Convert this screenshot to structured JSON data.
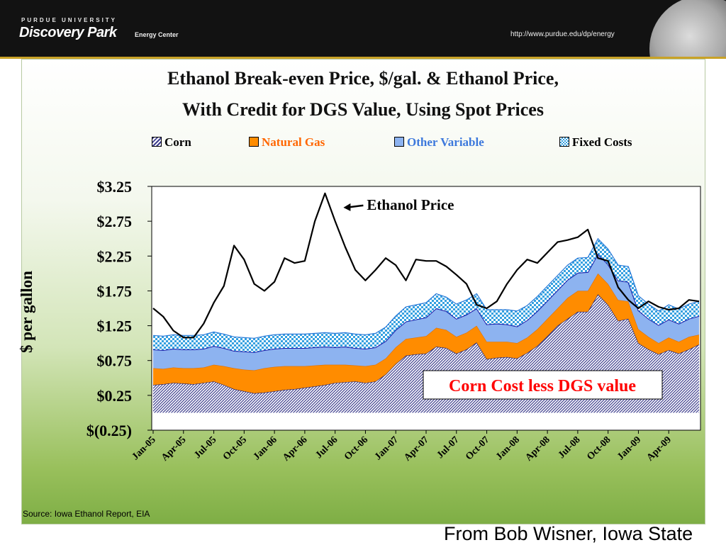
{
  "header": {
    "university": "PURDUE UNIVERSITY",
    "brand": "Discovery Park",
    "sub": "Energy Center",
    "url": "http://www.purdue.edu/dp/energy"
  },
  "chart_data": {
    "type": "area",
    "title": "Ethanol Break-even Price, $/gal. & Ethanol Price,",
    "subtitle": "With Credit for DGS Value, Using Spot Prices",
    "ylabel": "$ per gallon",
    "ylim": [
      -0.25,
      3.25
    ],
    "yticks": [
      "$3.25",
      "$2.75",
      "$2.25",
      "$1.75",
      "$1.25",
      "$0.75",
      "$0.25",
      "$(0.25)"
    ],
    "ytick_values": [
      3.25,
      2.75,
      2.25,
      1.75,
      1.25,
      0.75,
      0.25,
      -0.25
    ],
    "xtick_labels": [
      "Jan-05",
      "Apr-05",
      "Jul-05",
      "Oct-05",
      "Jan-06",
      "Apr-06",
      "Jul-06",
      "Oct-06",
      "Jan-07",
      "Apr-07",
      "Jul-07",
      "Oct-07",
      "Jan-08",
      "Apr-08",
      "Jul-08",
      "Oct-08",
      "Jan-09",
      "Apr-09"
    ],
    "legend_placement": "top",
    "grid": false,
    "stacked": true,
    "x": [
      "Jan-05",
      "Feb-05",
      "Mar-05",
      "Apr-05",
      "May-05",
      "Jun-05",
      "Jul-05",
      "Aug-05",
      "Sep-05",
      "Oct-05",
      "Nov-05",
      "Dec-05",
      "Jan-06",
      "Feb-06",
      "Mar-06",
      "Apr-06",
      "May-06",
      "Jun-06",
      "Jul-06",
      "Aug-06",
      "Sep-06",
      "Oct-06",
      "Nov-06",
      "Dec-06",
      "Jan-07",
      "Feb-07",
      "Mar-07",
      "Apr-07",
      "May-07",
      "Jun-07",
      "Jul-07",
      "Aug-07",
      "Sep-07",
      "Oct-07",
      "Nov-07",
      "Dec-07",
      "Jan-08",
      "Feb-08",
      "Mar-08",
      "Apr-08",
      "May-08",
      "Jun-08",
      "Jul-08",
      "Aug-08",
      "Sep-08",
      "Oct-08",
      "Nov-08",
      "Dec-08",
      "Jan-09",
      "Feb-09",
      "Mar-09",
      "Apr-09",
      "May-09",
      "Jun-09",
      "Jul-09"
    ],
    "series": [
      {
        "name": "Corn",
        "color": "#3f3f8f",
        "pattern": "hatch",
        "values": [
          0.4,
          0.41,
          0.43,
          0.42,
          0.41,
          0.43,
          0.45,
          0.4,
          0.34,
          0.31,
          0.28,
          0.29,
          0.31,
          0.33,
          0.34,
          0.36,
          0.38,
          0.4,
          0.43,
          0.44,
          0.45,
          0.43,
          0.45,
          0.55,
          0.7,
          0.82,
          0.84,
          0.85,
          0.95,
          0.93,
          0.85,
          0.91,
          1.01,
          0.77,
          0.79,
          0.8,
          0.78,
          0.86,
          0.96,
          1.1,
          1.25,
          1.35,
          1.45,
          1.45,
          1.7,
          1.55,
          1.32,
          1.35,
          1.0,
          0.91,
          0.84,
          0.9,
          0.85,
          0.91,
          0.98
        ]
      },
      {
        "name": "Natural Gas",
        "color": "#ff8c00",
        "values": [
          0.24,
          0.22,
          0.22,
          0.22,
          0.23,
          0.22,
          0.24,
          0.27,
          0.3,
          0.31,
          0.33,
          0.35,
          0.35,
          0.34,
          0.33,
          0.31,
          0.3,
          0.29,
          0.26,
          0.25,
          0.23,
          0.24,
          0.24,
          0.23,
          0.24,
          0.24,
          0.24,
          0.25,
          0.27,
          0.26,
          0.24,
          0.24,
          0.24,
          0.25,
          0.23,
          0.22,
          0.22,
          0.22,
          0.24,
          0.25,
          0.25,
          0.3,
          0.3,
          0.3,
          0.3,
          0.3,
          0.3,
          0.25,
          0.2,
          0.18,
          0.16,
          0.18,
          0.17,
          0.18,
          0.14
        ]
      },
      {
        "name": "Other Variable",
        "color": "#8db3f0",
        "values": [
          0.27,
          0.27,
          0.27,
          0.27,
          0.27,
          0.27,
          0.27,
          0.26,
          0.25,
          0.26,
          0.26,
          0.26,
          0.26,
          0.26,
          0.26,
          0.26,
          0.26,
          0.26,
          0.25,
          0.26,
          0.25,
          0.25,
          0.25,
          0.25,
          0.25,
          0.25,
          0.26,
          0.27,
          0.28,
          0.27,
          0.26,
          0.26,
          0.25,
          0.25,
          0.26,
          0.25,
          0.24,
          0.25,
          0.26,
          0.26,
          0.26,
          0.26,
          0.26,
          0.27,
          0.28,
          0.28,
          0.28,
          0.28,
          0.27,
          0.26,
          0.26,
          0.26,
          0.26,
          0.26,
          0.27
        ]
      },
      {
        "name": "Fixed Costs",
        "color": "#35a0e0",
        "pattern": "check",
        "values": [
          0.2,
          0.2,
          0.2,
          0.2,
          0.2,
          0.2,
          0.2,
          0.2,
          0.2,
          0.2,
          0.2,
          0.2,
          0.2,
          0.2,
          0.2,
          0.2,
          0.2,
          0.2,
          0.2,
          0.2,
          0.2,
          0.2,
          0.2,
          0.2,
          0.2,
          0.21,
          0.21,
          0.21,
          0.21,
          0.2,
          0.21,
          0.21,
          0.21,
          0.21,
          0.2,
          0.21,
          0.22,
          0.21,
          0.21,
          0.21,
          0.21,
          0.21,
          0.21,
          0.21,
          0.22,
          0.22,
          0.22,
          0.22,
          0.21,
          0.21,
          0.2,
          0.21,
          0.21,
          0.21,
          0.21
        ]
      }
    ],
    "ethanol_price": {
      "name": "Ethanol Price",
      "values": [
        1.5,
        1.38,
        1.18,
        1.08,
        1.08,
        1.28,
        1.58,
        1.82,
        2.4,
        2.2,
        1.85,
        1.75,
        1.88,
        2.22,
        2.15,
        2.18,
        2.75,
        3.15,
        2.75,
        2.38,
        2.05,
        1.9,
        2.05,
        2.22,
        2.12,
        1.9,
        2.2,
        2.18,
        2.18,
        2.1,
        1.98,
        1.85,
        1.55,
        1.5,
        1.6,
        1.85,
        2.05,
        2.2,
        2.15,
        2.3,
        2.45,
        2.48,
        2.52,
        2.63,
        2.22,
        2.18,
        1.8,
        1.62,
        1.5,
        1.6,
        1.52,
        1.48,
        1.5,
        1.62,
        1.6
      ]
    },
    "annotations": [
      "Ethanol Price",
      "Corn Cost less DGS value"
    ]
  },
  "footer": {
    "source": "Source: Iowa Ethanol Report, EIA",
    "credit": "From Bob Wisner, Iowa State"
  }
}
